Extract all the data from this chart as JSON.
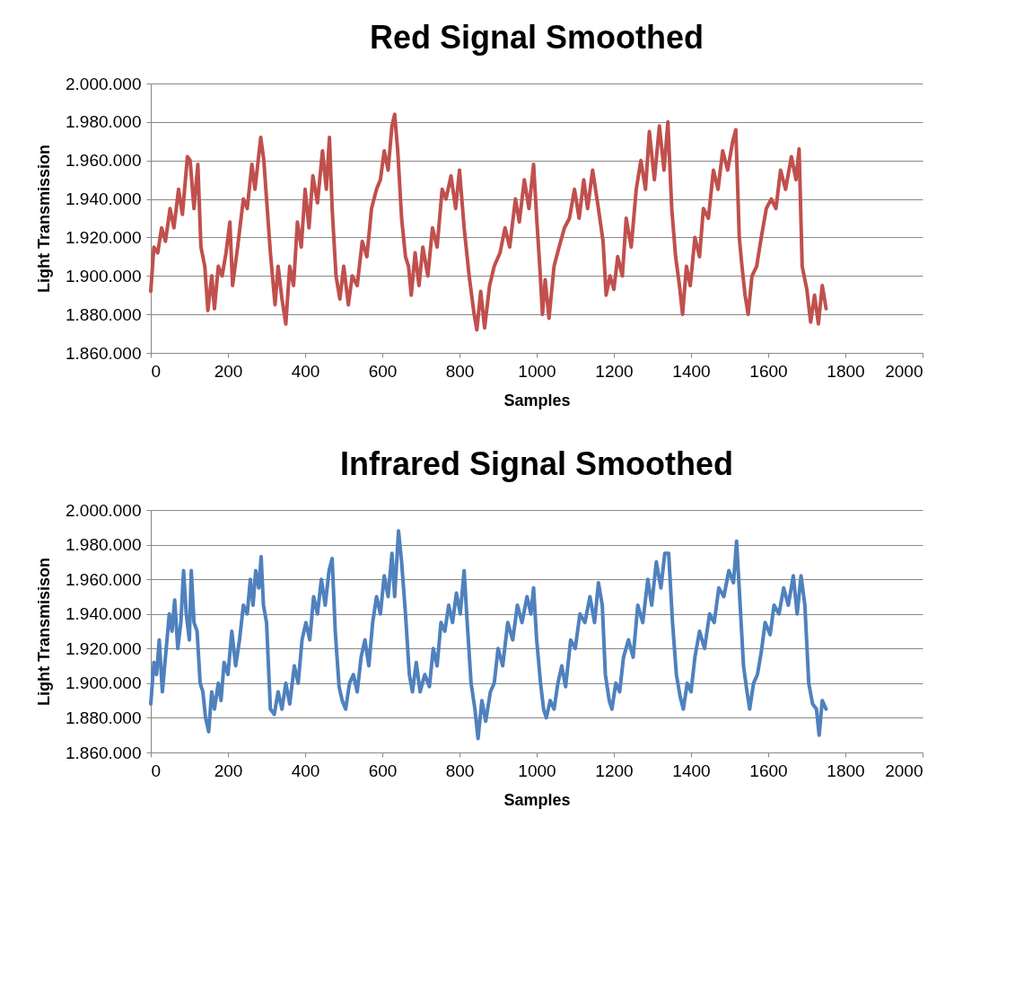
{
  "chart_data": [
    {
      "type": "line",
      "title": "Red Signal Smoothed",
      "xlabel": "Samples",
      "ylabel": "Light Transmission",
      "grid": "y",
      "xlim": [
        0,
        2000
      ],
      "xticks": [
        0,
        200,
        400,
        600,
        800,
        1000,
        1200,
        1400,
        1600,
        1800,
        2000
      ],
      "ylim": [
        1860000,
        2000000
      ],
      "yticks": [
        {
          "value": 1860000,
          "label": "1.860.000"
        },
        {
          "value": 1880000,
          "label": "1.880.000"
        },
        {
          "value": 1900000,
          "label": "1.900.000"
        },
        {
          "value": 1920000,
          "label": "1.920.000"
        },
        {
          "value": 1940000,
          "label": "1.940.000"
        },
        {
          "value": 1960000,
          "label": "1.960.000"
        },
        {
          "value": 1980000,
          "label": "1.980.000"
        },
        {
          "value": 2000000,
          "label": "2.000.000"
        }
      ],
      "x": [
        0,
        8,
        18,
        28,
        38,
        50,
        60,
        72,
        82,
        95,
        102,
        112,
        122,
        130,
        140,
        148,
        158,
        165,
        175,
        185,
        195,
        205,
        212,
        225,
        240,
        250,
        262,
        270,
        285,
        293,
        300,
        310,
        322,
        330,
        340,
        350,
        360,
        370,
        380,
        390,
        400,
        410,
        420,
        432,
        445,
        455,
        463,
        470,
        480,
        490,
        500,
        512,
        522,
        535,
        548,
        560,
        572,
        585,
        595,
        605,
        615,
        625,
        632,
        640,
        650,
        660,
        668,
        675,
        685,
        695,
        705,
        718,
        730,
        742,
        755,
        765,
        778,
        790,
        800,
        812,
        825,
        838,
        845,
        855,
        865,
        878,
        890,
        905,
        918,
        930,
        945,
        955,
        968,
        980,
        992,
        1000,
        1008,
        1015,
        1022,
        1032,
        1045,
        1058,
        1072,
        1085,
        1098,
        1110,
        1122,
        1132,
        1145,
        1160,
        1172,
        1180,
        1190,
        1200,
        1210,
        1222,
        1232,
        1245,
        1258,
        1270,
        1282,
        1292,
        1305,
        1318,
        1330,
        1340,
        1350,
        1360,
        1370,
        1378,
        1388,
        1398,
        1410,
        1422,
        1432,
        1445,
        1458,
        1470,
        1482,
        1495,
        1508,
        1516,
        1525,
        1532,
        1540,
        1548,
        1558,
        1570,
        1582,
        1595,
        1608,
        1620,
        1632,
        1645,
        1660,
        1672,
        1680,
        1688,
        1700,
        1710,
        1720,
        1730,
        1740,
        1750
      ],
      "series": [
        {
          "color": "#c0504d",
          "values": [
            1892000,
            1915000,
            1912000,
            1925000,
            1918000,
            1935000,
            1925000,
            1945000,
            1932000,
            1962000,
            1960000,
            1935000,
            1958000,
            1915000,
            1905000,
            1882000,
            1900000,
            1883000,
            1905000,
            1900000,
            1912000,
            1928000,
            1895000,
            1915000,
            1940000,
            1935000,
            1958000,
            1945000,
            1972000,
            1960000,
            1940000,
            1912000,
            1885000,
            1905000,
            1888000,
            1875000,
            1905000,
            1895000,
            1928000,
            1915000,
            1945000,
            1925000,
            1952000,
            1938000,
            1965000,
            1945000,
            1972000,
            1935000,
            1900000,
            1888000,
            1905000,
            1885000,
            1900000,
            1895000,
            1918000,
            1910000,
            1935000,
            1945000,
            1950000,
            1965000,
            1955000,
            1978000,
            1984000,
            1965000,
            1930000,
            1910000,
            1905000,
            1890000,
            1912000,
            1895000,
            1915000,
            1900000,
            1925000,
            1915000,
            1945000,
            1940000,
            1952000,
            1935000,
            1955000,
            1925000,
            1900000,
            1880000,
            1872000,
            1892000,
            1873000,
            1895000,
            1905000,
            1912000,
            1925000,
            1915000,
            1940000,
            1928000,
            1950000,
            1935000,
            1958000,
            1930000,
            1905000,
            1880000,
            1898000,
            1878000,
            1905000,
            1915000,
            1925000,
            1930000,
            1945000,
            1930000,
            1950000,
            1935000,
            1955000,
            1935000,
            1918000,
            1890000,
            1900000,
            1893000,
            1910000,
            1900000,
            1930000,
            1915000,
            1945000,
            1960000,
            1945000,
            1975000,
            1950000,
            1978000,
            1955000,
            1980000,
            1935000,
            1910000,
            1895000,
            1880000,
            1905000,
            1895000,
            1920000,
            1910000,
            1935000,
            1930000,
            1955000,
            1945000,
            1965000,
            1955000,
            1970000,
            1976000,
            1920000,
            1905000,
            1890000,
            1880000,
            1900000,
            1905000,
            1920000,
            1935000,
            1940000,
            1935000,
            1955000,
            1945000,
            1962000,
            1950000,
            1966000,
            1905000,
            1893000,
            1876000,
            1890000,
            1875000,
            1895000,
            1883000
          ]
        }
      ]
    },
    {
      "type": "line",
      "title": "Infrared Signal Smoothed",
      "xlabel": "Samples",
      "ylabel": "Light Transmisison",
      "grid": "y",
      "xlim": [
        0,
        2000
      ],
      "xticks": [
        0,
        200,
        400,
        600,
        800,
        1000,
        1200,
        1400,
        1600,
        1800,
        2000
      ],
      "ylim": [
        1860000,
        2000000
      ],
      "yticks": [
        {
          "value": 1860000,
          "label": "1.860.000"
        },
        {
          "value": 1880000,
          "label": "1.880.000"
        },
        {
          "value": 1900000,
          "label": "1.900.000"
        },
        {
          "value": 1920000,
          "label": "1.920.000"
        },
        {
          "value": 1940000,
          "label": "1.940.000"
        },
        {
          "value": 1960000,
          "label": "1.960.000"
        },
        {
          "value": 1980000,
          "label": "1.980.000"
        },
        {
          "value": 2000000,
          "label": "2.000.000"
        }
      ],
      "x": [
        0,
        8,
        15,
        22,
        30,
        38,
        48,
        55,
        62,
        70,
        78,
        85,
        92,
        100,
        105,
        112,
        120,
        128,
        135,
        142,
        150,
        158,
        165,
        175,
        182,
        190,
        200,
        210,
        220,
        230,
        240,
        250,
        258,
        265,
        272,
        280,
        286,
        292,
        300,
        310,
        320,
        330,
        340,
        350,
        360,
        372,
        382,
        392,
        402,
        412,
        422,
        432,
        442,
        452,
        462,
        470,
        478,
        488,
        496,
        505,
        515,
        525,
        535,
        545,
        555,
        565,
        575,
        585,
        595,
        605,
        615,
        625,
        632,
        642,
        650,
        660,
        670,
        678,
        688,
        698,
        710,
        722,
        732,
        742,
        752,
        762,
        772,
        782,
        792,
        802,
        812,
        820,
        830,
        840,
        848,
        858,
        868,
        880,
        890,
        900,
        912,
        925,
        938,
        950,
        962,
        975,
        985,
        992,
        1000,
        1010,
        1018,
        1025,
        1035,
        1045,
        1055,
        1065,
        1075,
        1088,
        1100,
        1112,
        1125,
        1138,
        1150,
        1160,
        1170,
        1178,
        1188,
        1195,
        1205,
        1215,
        1225,
        1238,
        1250,
        1262,
        1275,
        1288,
        1298,
        1310,
        1322,
        1332,
        1342,
        1352,
        1362,
        1372,
        1380,
        1390,
        1400,
        1410,
        1422,
        1435,
        1448,
        1460,
        1472,
        1485,
        1498,
        1510,
        1518,
        1526,
        1536,
        1545,
        1552,
        1562,
        1572,
        1582,
        1592,
        1605,
        1615,
        1628,
        1640,
        1652,
        1665,
        1675,
        1685,
        1695,
        1705,
        1715,
        1725,
        1732,
        1740,
        1750
      ],
      "series": [
        {
          "color": "#4f81bd",
          "values": [
            1888000,
            1912000,
            1905000,
            1925000,
            1895000,
            1915000,
            1940000,
            1930000,
            1948000,
            1920000,
            1935000,
            1965000,
            1940000,
            1925000,
            1965000,
            1935000,
            1930000,
            1900000,
            1895000,
            1880000,
            1872000,
            1895000,
            1885000,
            1900000,
            1890000,
            1912000,
            1905000,
            1930000,
            1910000,
            1925000,
            1945000,
            1940000,
            1960000,
            1945000,
            1965000,
            1955000,
            1973000,
            1945000,
            1935000,
            1885000,
            1882000,
            1895000,
            1885000,
            1900000,
            1888000,
            1910000,
            1900000,
            1925000,
            1935000,
            1925000,
            1950000,
            1940000,
            1960000,
            1945000,
            1965000,
            1972000,
            1930000,
            1898000,
            1890000,
            1885000,
            1900000,
            1905000,
            1895000,
            1915000,
            1925000,
            1910000,
            1935000,
            1950000,
            1940000,
            1962000,
            1950000,
            1975000,
            1950000,
            1988000,
            1970000,
            1940000,
            1905000,
            1895000,
            1912000,
            1895000,
            1905000,
            1898000,
            1920000,
            1910000,
            1935000,
            1930000,
            1945000,
            1935000,
            1952000,
            1940000,
            1965000,
            1935000,
            1900000,
            1885000,
            1868000,
            1890000,
            1878000,
            1895000,
            1900000,
            1920000,
            1910000,
            1935000,
            1925000,
            1945000,
            1935000,
            1950000,
            1940000,
            1955000,
            1925000,
            1900000,
            1885000,
            1880000,
            1890000,
            1885000,
            1900000,
            1910000,
            1898000,
            1925000,
            1920000,
            1940000,
            1935000,
            1950000,
            1935000,
            1958000,
            1945000,
            1905000,
            1890000,
            1885000,
            1900000,
            1895000,
            1915000,
            1925000,
            1915000,
            1945000,
            1935000,
            1960000,
            1945000,
            1970000,
            1955000,
            1975000,
            1975000,
            1935000,
            1905000,
            1892000,
            1885000,
            1900000,
            1895000,
            1915000,
            1930000,
            1920000,
            1940000,
            1935000,
            1955000,
            1950000,
            1965000,
            1958000,
            1982000,
            1950000,
            1910000,
            1895000,
            1885000,
            1900000,
            1905000,
            1918000,
            1935000,
            1928000,
            1945000,
            1940000,
            1955000,
            1945000,
            1962000,
            1940000,
            1962000,
            1945000,
            1900000,
            1888000,
            1885000,
            1870000,
            1890000,
            1885000
          ]
        }
      ]
    }
  ]
}
